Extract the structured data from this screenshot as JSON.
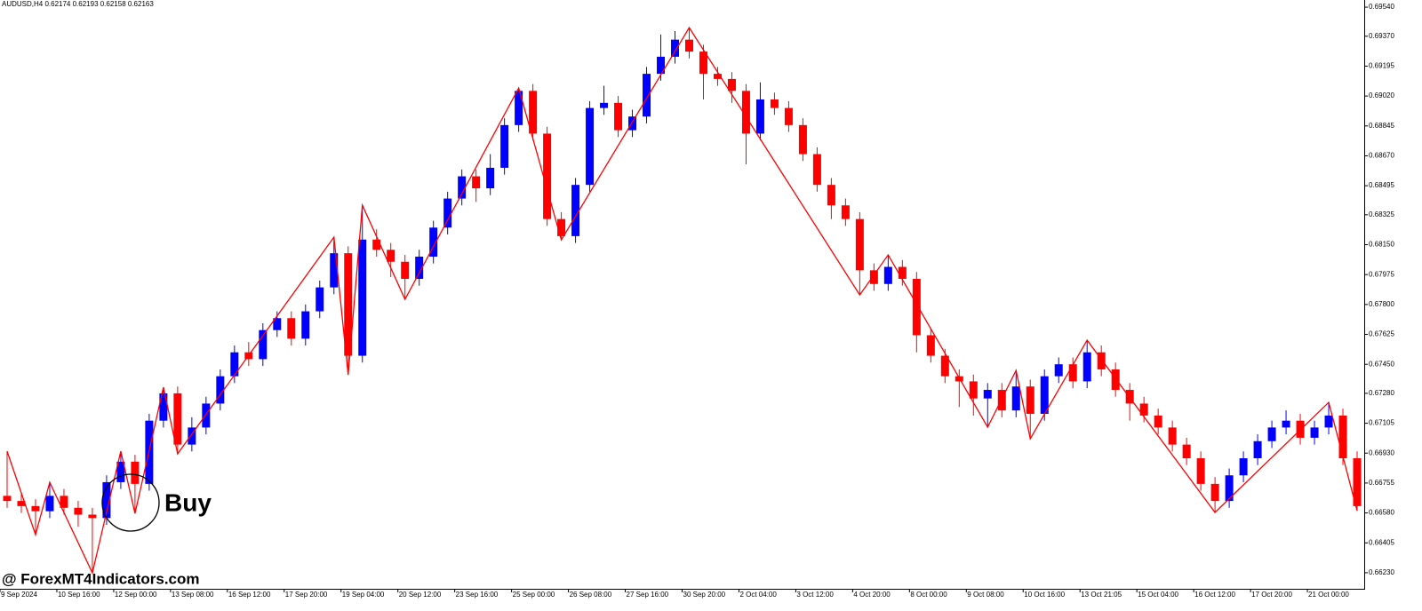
{
  "chart_data": {
    "type": "candlestick",
    "title": "AUDUSD,H4  0.62174 0.62193 0.62158 0.62163",
    "buy_label": "Buy",
    "watermark": "@ ForexMT4Indicators.com",
    "up_color": "#0000ff",
    "down_color": "#ff0000",
    "categories": [
      "9 Sep 2024",
      null,
      null,
      null,
      "10 Sep 16:00",
      null,
      null,
      null,
      "12 Sep 00:00",
      null,
      null,
      null,
      "13 Sep 08:00",
      null,
      null,
      null,
      "16 Sep 12:00",
      null,
      null,
      null,
      "17 Sep 20:00",
      null,
      null,
      null,
      "19 Sep 04:00",
      null,
      null,
      null,
      "20 Sep 12:00",
      null,
      null,
      null,
      "23 Sep 16:00",
      null,
      null,
      null,
      "25 Sep 00:00",
      null,
      null,
      null,
      "26 Sep 08:00",
      null,
      null,
      null,
      "27 Sep 16:00",
      null,
      null,
      null,
      "30 Sep 20:00",
      null,
      null,
      null,
      "2 Oct 04:00",
      null,
      null,
      null,
      "3 Oct 12:00",
      null,
      null,
      null,
      "4 Oct 20:00",
      null,
      null,
      null,
      "8 Oct 00:00",
      null,
      null,
      null,
      "9 Oct 08:00",
      null,
      null,
      null,
      "10 Oct 16:00",
      null,
      null,
      null,
      "13 Oct 21:05",
      null,
      null,
      null,
      "15 Oct 04:00",
      null,
      null,
      null,
      "16 Oct 12:00",
      null,
      null,
      null,
      "17 Oct 20:00",
      null,
      null,
      null,
      "21 Oct 00:00",
      null,
      null,
      null
    ],
    "open": [
      0.6668,
      0.6665,
      0.6662,
      0.6659,
      0.6668,
      0.6661,
      0.6657,
      0.6655,
      0.6676,
      0.6688,
      0.6675,
      0.6712,
      0.6728,
      0.6698,
      0.6708,
      0.6722,
      0.6738,
      0.6752,
      0.6748,
      0.6765,
      0.6772,
      0.676,
      0.6776,
      0.679,
      0.681,
      0.675,
      0.6818,
      0.6812,
      0.6805,
      0.6795,
      0.6808,
      0.6825,
      0.6842,
      0.6855,
      0.6848,
      0.686,
      0.6885,
      0.6905,
      0.688,
      0.683,
      0.682,
      0.685,
      0.6895,
      0.6898,
      0.6882,
      0.689,
      0.6915,
      0.6925,
      0.6935,
      0.6928,
      0.6915,
      0.6912,
      0.6905,
      0.688,
      0.69,
      0.6895,
      0.6885,
      0.6868,
      0.685,
      0.6838,
      0.683,
      0.68,
      0.6792,
      0.6802,
      0.6795,
      0.6762,
      0.675,
      0.6738,
      0.6735,
      0.6725,
      0.673,
      0.6718,
      0.6732,
      0.6716,
      0.6738,
      0.6745,
      0.6735,
      0.6752,
      0.6742,
      0.673,
      0.6722,
      0.6715,
      0.6708,
      0.6698,
      0.669,
      0.6675,
      0.6665,
      0.668,
      0.669,
      0.67,
      0.6708,
      0.6712,
      0.6702,
      0.6708,
      0.6715,
      0.669
    ],
    "high": [
      0.66941,
      0.6669,
      0.6666,
      0.66759,
      0.6672,
      0.6665,
      0.6661,
      0.668,
      0.66941,
      0.6692,
      0.6716,
      0.67315,
      0.6732,
      0.6714,
      0.6726,
      0.6742,
      0.6756,
      0.6758,
      0.6769,
      0.6776,
      0.6776,
      0.678,
      0.6794,
      0.68194,
      0.6814,
      0.68381,
      0.6824,
      0.6816,
      0.6809,
      0.6812,
      0.6829,
      0.6846,
      0.6859,
      0.6859,
      0.6868,
      0.6889,
      0.69067,
      0.6909,
      0.6884,
      0.6834,
      0.6854,
      0.6899,
      0.6908,
      0.6902,
      0.6894,
      0.6919,
      0.6938,
      0.694,
      0.6942,
      0.6932,
      0.6919,
      0.6916,
      0.6909,
      0.691,
      0.6904,
      0.6899,
      0.6889,
      0.6872,
      0.6854,
      0.6842,
      0.6834,
      0.6804,
      0.6809,
      0.6806,
      0.6799,
      0.6766,
      0.6754,
      0.6742,
      0.6739,
      0.6734,
      0.6734,
      0.67414,
      0.6736,
      0.6742,
      0.6749,
      0.6749,
      0.67591,
      0.6756,
      0.6746,
      0.6734,
      0.6726,
      0.6719,
      0.6712,
      0.6702,
      0.6694,
      0.6679,
      0.6684,
      0.6694,
      0.6704,
      0.6712,
      0.6718,
      0.6716,
      0.6712,
      0.67227,
      0.6719,
      0.6694
    ],
    "low": [
      0.6661,
      0.6658,
      0.66453,
      0.6655,
      0.6657,
      0.665,
      0.66229,
      0.6651,
      0.6672,
      0.66577,
      0.6671,
      0.6708,
      0.66926,
      0.6694,
      0.6704,
      0.6718,
      0.6734,
      0.6744,
      0.6744,
      0.6761,
      0.6756,
      0.6756,
      0.6772,
      0.6786,
      0.67388,
      0.6746,
      0.6808,
      0.6796,
      0.6783,
      0.6791,
      0.6804,
      0.6821,
      0.6838,
      0.684,
      0.6844,
      0.6856,
      0.6881,
      0.6876,
      0.6826,
      0.68178,
      0.6816,
      0.6846,
      0.6891,
      0.6878,
      0.6878,
      0.6886,
      0.6911,
      0.6921,
      0.6924,
      0.69,
      0.6908,
      0.6898,
      0.6862,
      0.6876,
      0.6891,
      0.6881,
      0.6864,
      0.6846,
      0.683,
      0.6826,
      0.67856,
      0.6788,
      0.6788,
      0.6791,
      0.6752,
      0.6746,
      0.6734,
      0.672,
      0.6715,
      0.67082,
      0.6714,
      0.6714,
      0.67014,
      0.6712,
      0.6734,
      0.6731,
      0.6731,
      0.6738,
      0.6726,
      0.6712,
      0.6711,
      0.6704,
      0.6694,
      0.6686,
      0.6671,
      0.66583,
      0.6661,
      0.6676,
      0.6686,
      0.6696,
      0.6704,
      0.6698,
      0.6698,
      0.6704,
      0.6686,
      0.66593
    ],
    "close": [
      0.6665,
      0.6662,
      0.6659,
      0.6668,
      0.6661,
      0.6657,
      0.6655,
      0.6676,
      0.6688,
      0.6675,
      0.6712,
      0.6728,
      0.6698,
      0.6708,
      0.6722,
      0.6738,
      0.6752,
      0.6748,
      0.6765,
      0.6772,
      0.676,
      0.6776,
      0.679,
      0.681,
      0.675,
      0.6818,
      0.6812,
      0.6805,
      0.6795,
      0.6808,
      0.6825,
      0.6842,
      0.6855,
      0.6848,
      0.686,
      0.6885,
      0.6905,
      0.688,
      0.683,
      0.682,
      0.685,
      0.6895,
      0.6898,
      0.6882,
      0.689,
      0.6915,
      0.6925,
      0.6935,
      0.6928,
      0.6915,
      0.6912,
      0.6905,
      0.688,
      0.69,
      0.6895,
      0.6885,
      0.6868,
      0.685,
      0.6838,
      0.683,
      0.68,
      0.6792,
      0.6802,
      0.6795,
      0.6762,
      0.675,
      0.6738,
      0.6735,
      0.6725,
      0.673,
      0.6718,
      0.6732,
      0.6716,
      0.6738,
      0.6745,
      0.6735,
      0.6752,
      0.6742,
      0.673,
      0.6722,
      0.6715,
      0.6708,
      0.6698,
      0.669,
      0.6675,
      0.6665,
      0.668,
      0.669,
      0.67,
      0.6708,
      0.6712,
      0.6702,
      0.6708,
      0.6715,
      0.669,
      0.6662
    ],
    "zigzag": {
      "color": "#ff0000",
      "x": [
        0,
        2,
        3,
        6,
        8,
        9,
        11,
        12,
        23,
        24,
        25,
        28,
        36,
        39,
        48,
        60,
        62,
        69,
        71,
        72,
        76,
        85,
        93,
        95
      ],
      "values": [
        0.66941,
        0.66453,
        0.66759,
        0.66229,
        0.66941,
        0.66577,
        0.67315,
        0.66926,
        0.68194,
        0.67388,
        0.68381,
        0.6783,
        0.69067,
        0.68178,
        0.6942,
        0.67856,
        0.6809,
        0.67082,
        0.67414,
        0.67014,
        0.67591,
        0.66583,
        0.67227,
        0.66593
      ]
    },
    "ylim": [
      0.66136,
      0.69582
    ],
    "yticks": [
      {
        "value": 0.6954,
        "label": "0.69540"
      },
      {
        "value": 0.6937,
        "label": "0.69370"
      },
      0.69195,
      {
        "value": 0.6902,
        "label": "0.69020"
      },
      0.68845,
      {
        "value": 0.6867,
        "label": "0.68670"
      },
      0.68495,
      0.68325,
      {
        "value": 0.6815,
        "label": "0.68150"
      },
      0.67975,
      {
        "value": 0.678,
        "label": "0.67800"
      },
      0.67625,
      {
        "value": 0.6745,
        "label": "0.67450"
      },
      {
        "value": 0.6728,
        "label": "0.67280"
      },
      0.67105,
      {
        "value": 0.6693,
        "label": "0.66930"
      },
      0.66755,
      {
        "value": 0.6658,
        "label": "0.66580"
      },
      0.66405,
      {
        "value": 0.6623,
        "label": "0.66230"
      }
    ]
  }
}
